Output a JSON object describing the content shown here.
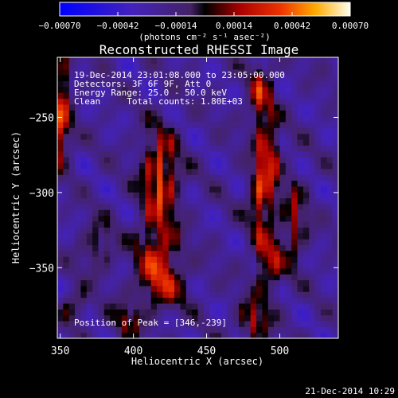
{
  "chart_data": {
    "type": "heatmap",
    "title": "Reconstructed RHESSI Image",
    "xlabel": "Heliocentric X (arcsec)",
    "ylabel": "Heliocentric Y (arcsec)",
    "xlim": [
      348,
      540
    ],
    "ylim": [
      -397,
      -210
    ],
    "xticks": [
      {
        "value": 350,
        "label": "350"
      },
      {
        "value": 400,
        "label": "400"
      },
      {
        "value": 450,
        "label": "450"
      },
      {
        "value": 500,
        "label": "500"
      }
    ],
    "yticks": [
      {
        "value": -250,
        "label": "−250"
      },
      {
        "value": -300,
        "label": "−300"
      },
      {
        "value": -350,
        "label": "−350"
      }
    ],
    "colorbar": {
      "label": "(photons cm⁻² s⁻¹ asec⁻²)",
      "range": [
        -0.0007,
        0.0007
      ],
      "ticks": [
        {
          "value": -0.0007,
          "label": "−0.00070"
        },
        {
          "value": -0.00042,
          "label": "−0.00042"
        },
        {
          "value": -0.00014,
          "label": "−0.00014"
        },
        {
          "value": 0.00014,
          "label": "0.00014"
        },
        {
          "value": 0.00042,
          "label": "0.00042"
        },
        {
          "value": 0.0007,
          "label": "0.00070"
        }
      ]
    },
    "annotations": [
      "19-Dec-2014 23:01:08.000 to 23:05:00.000",
      "Detectors: 3F 6F 9F, Att 0",
      "Energy Range: 25.0 - 50.0 keV",
      "Clean     Total counts: 1.80E+03",
      "Position of Peak = [346,-239]"
    ],
    "sources": [
      {
        "x": 347,
        "y": -230,
        "w": 6,
        "h": 22,
        "amp": 0.00062
      },
      {
        "x": 350,
        "y": -262,
        "w": 5,
        "h": 14,
        "amp": 0.00045
      },
      {
        "x": 418,
        "y": -290,
        "w": 9,
        "h": 22,
        "amp": 0.00066
      },
      {
        "x": 416,
        "y": -340,
        "w": 10,
        "h": 16,
        "amp": 0.00048
      },
      {
        "x": 420,
        "y": -362,
        "w": 12,
        "h": 12,
        "amp": 0.0004
      },
      {
        "x": 487,
        "y": -235,
        "w": 6,
        "h": 16,
        "amp": 0.0005
      },
      {
        "x": 492,
        "y": -275,
        "w": 6,
        "h": 16,
        "amp": 0.00058
      },
      {
        "x": 487,
        "y": -305,
        "w": 6,
        "h": 14,
        "amp": 0.00055
      },
      {
        "x": 492,
        "y": -345,
        "w": 7,
        "h": 16,
        "amp": 0.0005
      },
      {
        "x": 482,
        "y": -385,
        "w": 8,
        "h": 10,
        "amp": 0.00045
      },
      {
        "x": 510,
        "y": -320,
        "w": 6,
        "h": 20,
        "amp": 0.0004
      },
      {
        "x": 375,
        "y": -335,
        "w": 8,
        "h": 12,
        "amp": 0.0003
      },
      {
        "x": 395,
        "y": -385,
        "w": 8,
        "h": 8,
        "amp": 0.00035
      },
      {
        "x": 360,
        "y": -375,
        "w": 6,
        "h": 8,
        "amp": 0.00035
      }
    ]
  },
  "footer": {
    "timestamp": "21-Dec-2014 10:29"
  }
}
